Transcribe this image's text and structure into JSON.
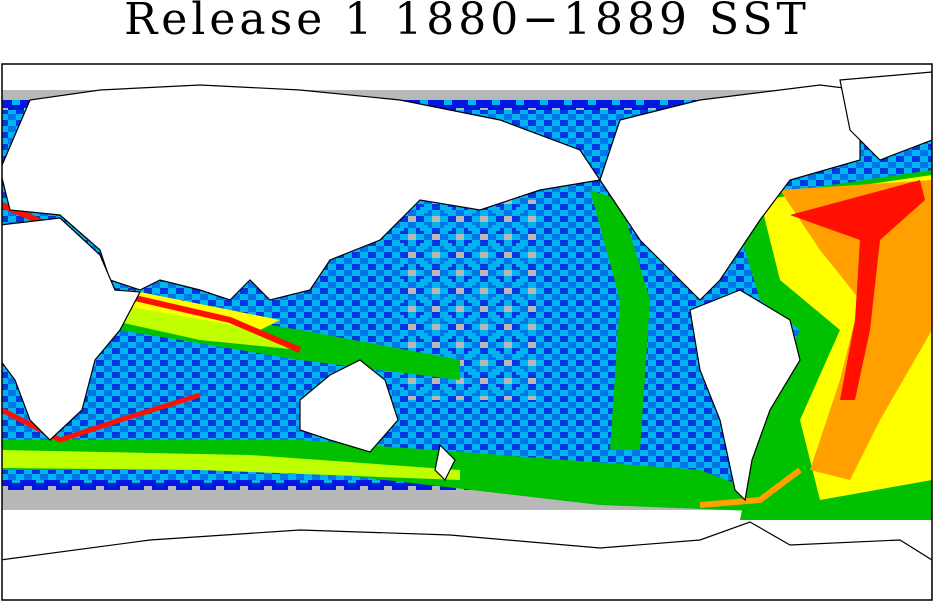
{
  "title": "Release 1 1880−1889 SST"
}
